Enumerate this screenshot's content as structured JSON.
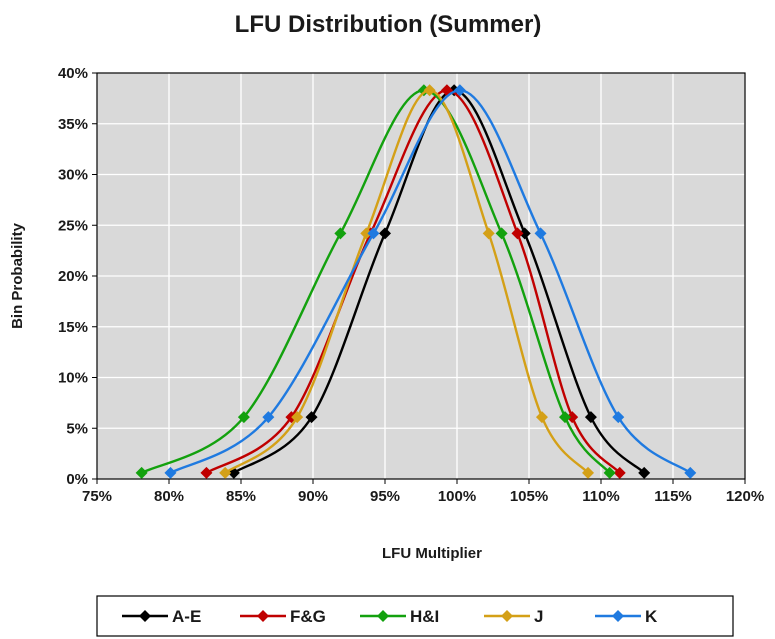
{
  "chart_data": {
    "type": "line",
    "title": "LFU Distribution (Summer)",
    "xlabel": "LFU Multiplier",
    "ylabel": "Bin Probability",
    "xlim": [
      75,
      120
    ],
    "ylim": [
      0,
      40
    ],
    "x_ticks": [
      "75%",
      "80%",
      "85%",
      "90%",
      "95%",
      "100%",
      "105%",
      "110%",
      "115%",
      "120%"
    ],
    "y_ticks": [
      "0%",
      "5%",
      "10%",
      "15%",
      "20%",
      "25%",
      "30%",
      "35%",
      "40%"
    ],
    "grid": true,
    "plot_background": "#d9d9d9",
    "legend_position": "bottom",
    "series": [
      {
        "name": "A-E",
        "color": "#000000",
        "x": [
          84.5,
          89.9,
          95.0,
          99.8,
          104.7,
          109.3,
          113.0
        ],
        "y": [
          0.6,
          6.1,
          24.2,
          38.3,
          24.2,
          6.1,
          0.6
        ]
      },
      {
        "name": "F&G",
        "color": "#c00000",
        "x": [
          82.6,
          88.5,
          94.0,
          99.3,
          104.2,
          108.0,
          111.3
        ],
        "y": [
          0.6,
          6.1,
          24.2,
          38.3,
          24.2,
          6.1,
          0.6
        ]
      },
      {
        "name": "H&I",
        "color": "#13a10e",
        "x": [
          78.1,
          85.2,
          91.9,
          97.7,
          103.1,
          107.5,
          110.6
        ],
        "y": [
          0.6,
          6.1,
          24.2,
          38.3,
          24.2,
          6.1,
          0.6
        ]
      },
      {
        "name": "J",
        "color": "#d4a017",
        "x": [
          83.9,
          88.9,
          93.7,
          98.1,
          102.2,
          105.9,
          109.1
        ],
        "y": [
          0.6,
          6.1,
          24.2,
          38.3,
          24.2,
          6.1,
          0.6
        ]
      },
      {
        "name": "K",
        "color": "#1f7ae0",
        "x": [
          80.1,
          86.9,
          94.2,
          100.2,
          105.8,
          111.2,
          116.2
        ],
        "y": [
          0.6,
          6.1,
          24.2,
          38.3,
          24.2,
          6.1,
          0.6
        ]
      }
    ]
  }
}
